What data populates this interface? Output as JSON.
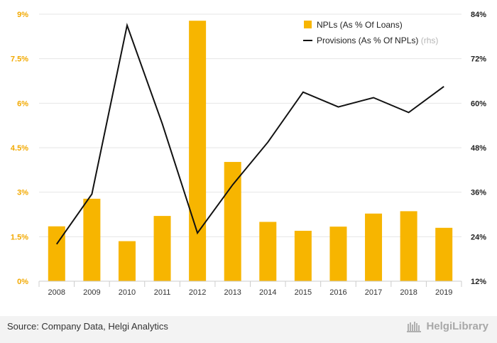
{
  "chart_data": {
    "type": "bar",
    "categories": [
      "2008",
      "2009",
      "2010",
      "2011",
      "2012",
      "2013",
      "2014",
      "2015",
      "2016",
      "2017",
      "2018",
      "2019"
    ],
    "series": [
      {
        "name": "NPLs (As % Of Loans)",
        "type": "bar",
        "axis": "left",
        "color": "#f7b500",
        "values": [
          1.85,
          2.78,
          1.35,
          2.2,
          8.78,
          4.02,
          2.0,
          1.7,
          1.84,
          2.28,
          2.36,
          1.8
        ]
      },
      {
        "name": "Provisions (As % Of NPLs)",
        "type": "line",
        "axis": "right",
        "color": "#111111",
        "values": [
          22.0,
          35.5,
          81.0,
          54.5,
          25.0,
          38.0,
          49.5,
          63.0,
          59.0,
          61.5,
          57.5,
          64.5
        ]
      }
    ],
    "y_left": {
      "ylim": [
        0,
        9
      ],
      "ticks": [
        "0%",
        "1.5%",
        "3%",
        "4.5%",
        "6%",
        "7.5%",
        "9%"
      ],
      "tick_values": [
        0,
        1.5,
        3,
        4.5,
        6,
        7.5,
        9
      ]
    },
    "y_right": {
      "ylim": [
        12,
        84
      ],
      "ticks": [
        "12%",
        "24%",
        "36%",
        "48%",
        "60%",
        "72%",
        "84%"
      ],
      "tick_values": [
        12,
        24,
        36,
        48,
        60,
        72,
        84
      ]
    },
    "legend": {
      "placement": "top-right",
      "rhs_suffix": "(rhs)"
    },
    "grid": true
  },
  "footer": {
    "source": "Source: Company Data, Helgi Analytics",
    "brand": "HelgiLibrary"
  },
  "colors": {
    "accent": "#f7b500",
    "line": "#111111",
    "footer_bg": "#f3f3f3"
  }
}
